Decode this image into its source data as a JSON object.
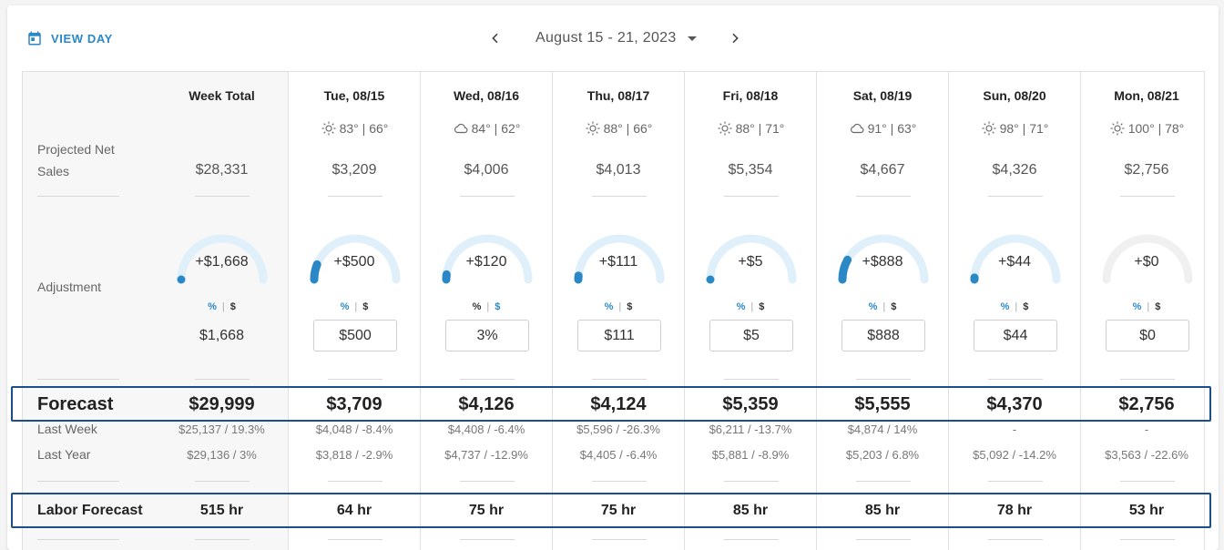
{
  "toolbar": {
    "view_day_label": "VIEW DAY",
    "date_range": "August 15 - 21, 2023"
  },
  "row_labels": {
    "projected_net_sales": "Projected Net Sales",
    "adjustment": "Adjustment",
    "forecast": "Forecast",
    "last_week": "Last Week",
    "last_year": "Last Year",
    "labor_forecast": "Labor Forecast"
  },
  "toggle": {
    "percent": "%",
    "separator": "|",
    "dollar": "$"
  },
  "week_total": {
    "header": "Week Total",
    "projected_net_sales": "$28,331",
    "adjustment_display": "+$1,668",
    "adjustment_fraction": 0.0,
    "adjustment_value": "$1,668",
    "forecast": "$29,999",
    "last_week": "$25,137 / 19.3%",
    "last_year": "$29,136 / 3%",
    "labor_forecast": "515 hr"
  },
  "days": [
    {
      "header": "Tue, 08/15",
      "weather_icon": "sun-icon",
      "weather": "83° | 66°",
      "projected_net_sales": "$3,209",
      "adjustment_display": "+$500",
      "adjustment_fraction": 0.12,
      "adjustment_mode": "$",
      "adjustment_input": "$500",
      "forecast": "$3,709",
      "last_week": "$4,048 / -8.4%",
      "last_year": "$3,818 / -2.9%",
      "labor_forecast": "64 hr"
    },
    {
      "header": "Wed, 08/16",
      "weather_icon": "cloud-icon",
      "weather": "84° | 62°",
      "projected_net_sales": "$4,006",
      "adjustment_display": "+$120",
      "adjustment_fraction": 0.04,
      "adjustment_mode": "%",
      "adjustment_input": "3%",
      "forecast": "$4,126",
      "last_week": "$4,408 / -6.4%",
      "last_year": "$4,737 / -12.9%",
      "labor_forecast": "75 hr"
    },
    {
      "header": "Thu, 08/17",
      "weather_icon": "sun-icon",
      "weather": "88° | 66°",
      "projected_net_sales": "$4,013",
      "adjustment_display": "+$111",
      "adjustment_fraction": 0.03,
      "adjustment_mode": "$",
      "adjustment_input": "$111",
      "forecast": "$4,124",
      "last_week": "$5,596 / -26.3%",
      "last_year": "$4,405 / -6.4%",
      "labor_forecast": "75 hr"
    },
    {
      "header": "Fri, 08/18",
      "weather_icon": "sun-icon",
      "weather": "88° | 71°",
      "projected_net_sales": "$5,354",
      "adjustment_display": "+$5",
      "adjustment_fraction": 0.0,
      "adjustment_mode": "$",
      "adjustment_input": "$5",
      "forecast": "$5,359",
      "last_week": "$6,211 / -13.7%",
      "last_year": "$5,881 / -8.9%",
      "labor_forecast": "85 hr"
    },
    {
      "header": "Sat, 08/19",
      "weather_icon": "cloud-icon",
      "weather": "91° | 63°",
      "projected_net_sales": "$4,667",
      "adjustment_display": "+$888",
      "adjustment_fraction": 0.16,
      "adjustment_mode": "$",
      "adjustment_input": "$888",
      "forecast": "$5,555",
      "last_week": "$4,874 / 14%",
      "last_year": "$5,203 / 6.8%",
      "labor_forecast": "85 hr"
    },
    {
      "header": "Sun, 08/20",
      "weather_icon": "sun-icon",
      "weather": "98° | 71°",
      "projected_net_sales": "$4,326",
      "adjustment_display": "+$44",
      "adjustment_fraction": 0.015,
      "adjustment_mode": "$",
      "adjustment_input": "$44",
      "forecast": "$4,370",
      "last_week": "-",
      "last_year": "$5,092 / -14.2%",
      "labor_forecast": "78 hr"
    },
    {
      "header": "Mon, 08/21",
      "weather_icon": "sun-icon",
      "weather": "100° | 78°",
      "projected_net_sales": "$2,756",
      "adjustment_display": "+$0",
      "adjustment_fraction": 0.0,
      "adjustment_mode": "$",
      "adjustment_input": "$0",
      "forecast": "$2,756",
      "last_week": "-",
      "last_year": "$3,563 / -22.6%",
      "labor_forecast": "53 hr"
    }
  ],
  "colors": {
    "accent": "#2a88c7",
    "gauge_track": "#dff0fa",
    "gauge_track_zero": "#f0f0f0",
    "highlight_border": "#1a4f8b"
  }
}
